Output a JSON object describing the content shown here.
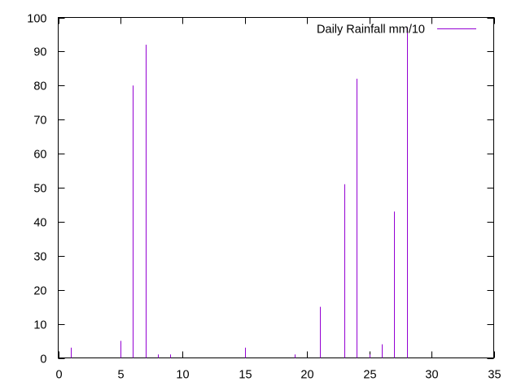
{
  "chart_data": {
    "type": "impulse",
    "title": "",
    "xlabel": "",
    "ylabel": "",
    "xlim": [
      0,
      35
    ],
    "ylim": [
      0,
      100
    ],
    "x_ticks": [
      0,
      5,
      10,
      15,
      20,
      25,
      30,
      35
    ],
    "y_ticks": [
      0,
      10,
      20,
      30,
      40,
      50,
      60,
      70,
      80,
      90,
      100
    ],
    "grid": false,
    "legend_position": "top-right",
    "series": [
      {
        "name": "Daily Rainfall mm/10",
        "color": "#9400d3",
        "x": [
          1,
          5,
          6,
          7,
          8,
          9,
          15,
          19,
          21,
          23,
          24,
          25,
          26,
          27,
          28
        ],
        "y": [
          3,
          5,
          80,
          92,
          1,
          1,
          3,
          1,
          15,
          51,
          82,
          1,
          4,
          43,
          97
        ]
      }
    ]
  }
}
